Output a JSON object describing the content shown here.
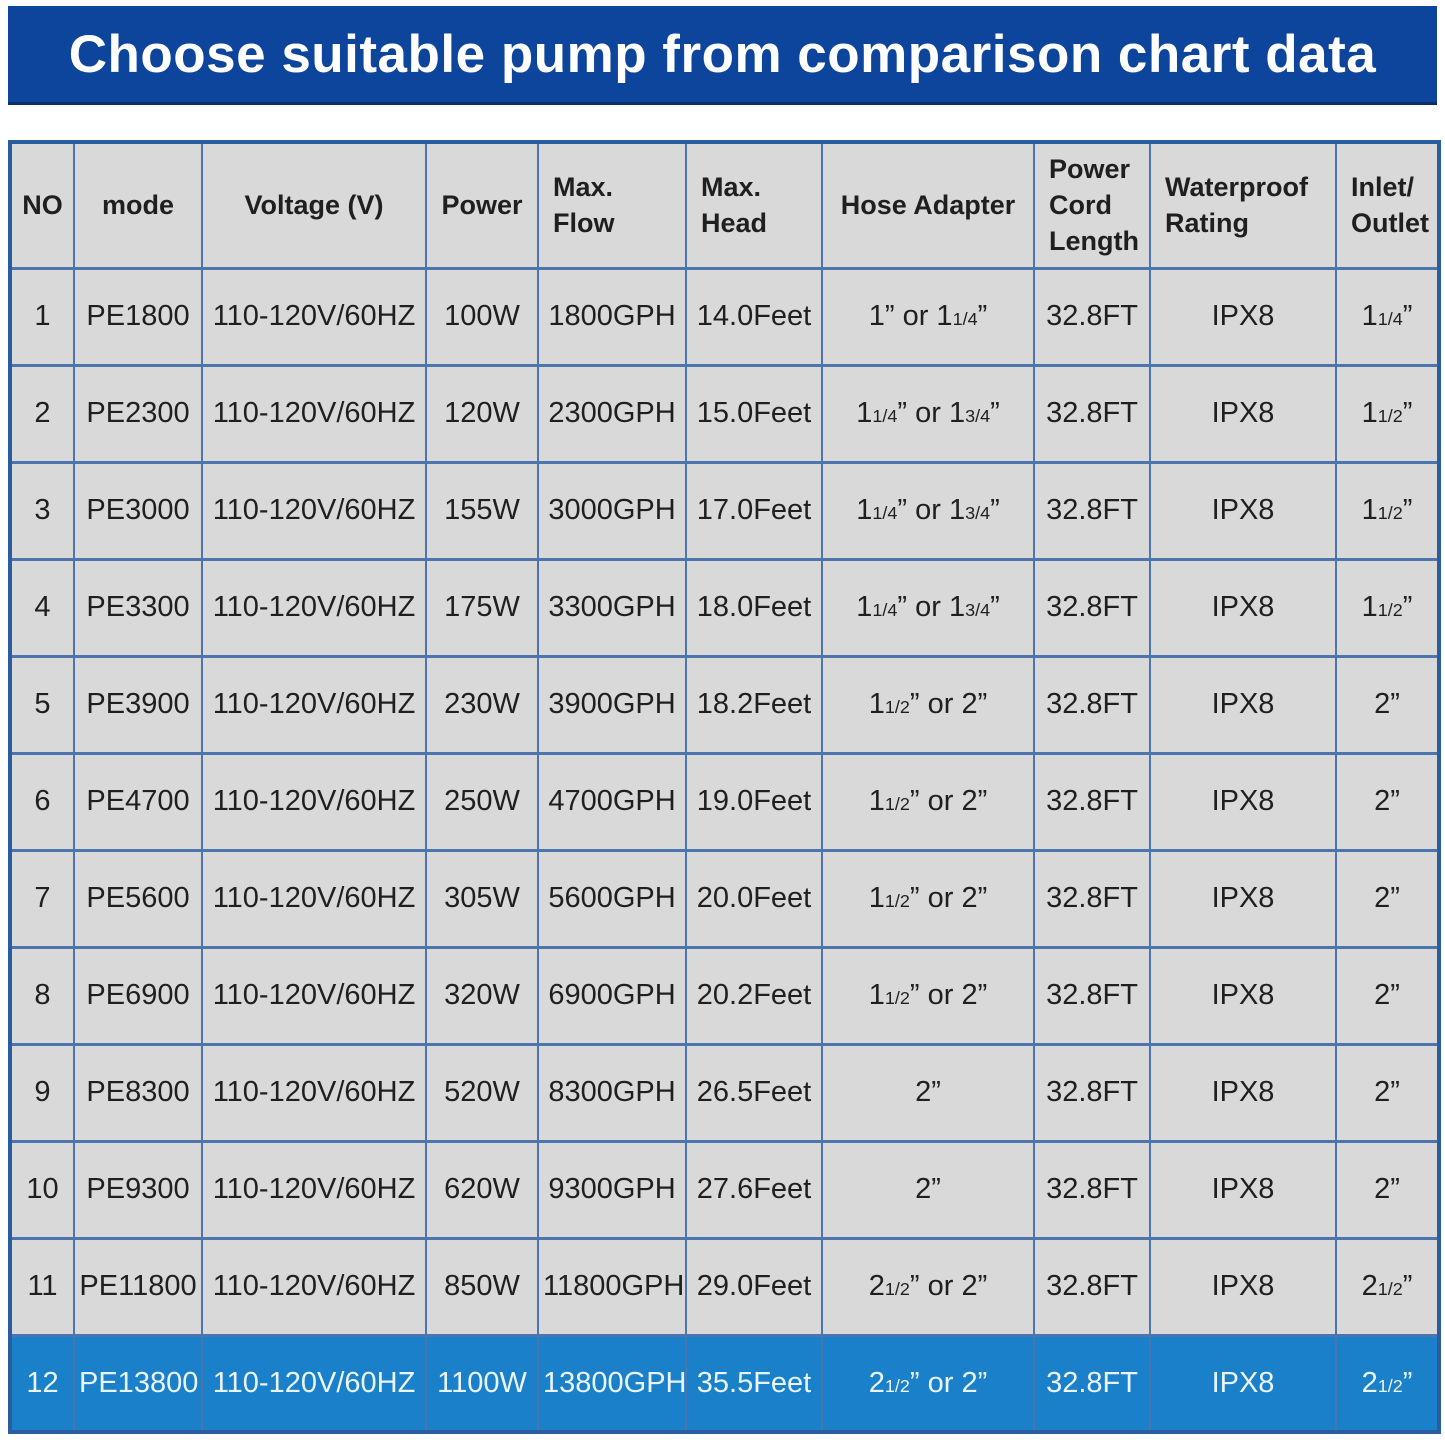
{
  "title": "Choose suitable pump from comparison chart data",
  "colors": {
    "banner_bg": "#0e459c",
    "banner_text": "#ffffff",
    "cell_bg": "#d9d9d9",
    "grid_line": "#4a76ad",
    "outer_border": "#2b5ca0",
    "cell_text": "#1f1f1f",
    "highlight_row_bg": "#1b80ca",
    "highlight_row_text": "#eaf4fd"
  },
  "chart_data": {
    "type": "table",
    "title": "Choose suitable pump from comparison chart data",
    "columns": [
      "NO",
      "mode",
      "Voltage (V)",
      "Power",
      "Max.\nFlow",
      "Max.\nHead",
      "Hose Adapter",
      "Power\nCord\nLength",
      "Waterproof\nRating",
      "Inlet/\nOutlet"
    ],
    "header_align": [
      "center",
      "center",
      "center",
      "center",
      "left",
      "left",
      "center",
      "left",
      "left",
      "left"
    ],
    "highlighted_row": 12,
    "rows": [
      [
        "1",
        "PE1800",
        "110-120V/60HZ",
        "100W",
        "1800GPH",
        "14.0Feet",
        "1” or 1{1/4}”",
        "32.8FT",
        "IPX8",
        "1{1/4}”"
      ],
      [
        "2",
        "PE2300",
        "110-120V/60HZ",
        "120W",
        "2300GPH",
        "15.0Feet",
        "1{1/4}” or 1{3/4}”",
        "32.8FT",
        "IPX8",
        "1{1/2}”"
      ],
      [
        "3",
        "PE3000",
        "110-120V/60HZ",
        "155W",
        "3000GPH",
        "17.0Feet",
        "1{1/4}” or 1{3/4}”",
        "32.8FT",
        "IPX8",
        "1{1/2}”"
      ],
      [
        "4",
        "PE3300",
        "110-120V/60HZ",
        "175W",
        "3300GPH",
        "18.0Feet",
        "1{1/4}” or 1{3/4}”",
        "32.8FT",
        "IPX8",
        "1{1/2}”"
      ],
      [
        "5",
        "PE3900",
        "110-120V/60HZ",
        "230W",
        "3900GPH",
        "18.2Feet",
        "1{1/2}” or 2”",
        "32.8FT",
        "IPX8",
        "2”"
      ],
      [
        "6",
        "PE4700",
        "110-120V/60HZ",
        "250W",
        "4700GPH",
        "19.0Feet",
        "1{1/2}” or 2”",
        "32.8FT",
        "IPX8",
        "2”"
      ],
      [
        "7",
        "PE5600",
        "110-120V/60HZ",
        "305W",
        "5600GPH",
        "20.0Feet",
        "1{1/2}” or 2”",
        "32.8FT",
        "IPX8",
        "2”"
      ],
      [
        "8",
        "PE6900",
        "110-120V/60HZ",
        "320W",
        "6900GPH",
        "20.2Feet",
        "1{1/2}” or 2”",
        "32.8FT",
        "IPX8",
        "2”"
      ],
      [
        "9",
        "PE8300",
        "110-120V/60HZ",
        "520W",
        "8300GPH",
        "26.5Feet",
        "2”",
        "32.8FT",
        "IPX8",
        "2”"
      ],
      [
        "10",
        "PE9300",
        "110-120V/60HZ",
        "620W",
        "9300GPH",
        "27.6Feet",
        "2”",
        "32.8FT",
        "IPX8",
        "2”"
      ],
      [
        "11",
        "PE11800",
        "110-120V/60HZ",
        "850W",
        "11800GPH",
        "29.0Feet",
        "2{1/2}” or 2”",
        "32.8FT",
        "IPX8",
        "2{1/2}”"
      ],
      [
        "12",
        "PE13800",
        "110-120V/60HZ",
        "1100W",
        "13800GPH",
        "35.5Feet",
        "2{1/2}” or 2”",
        "32.8FT",
        "IPX8",
        "2{1/2}”"
      ]
    ]
  }
}
